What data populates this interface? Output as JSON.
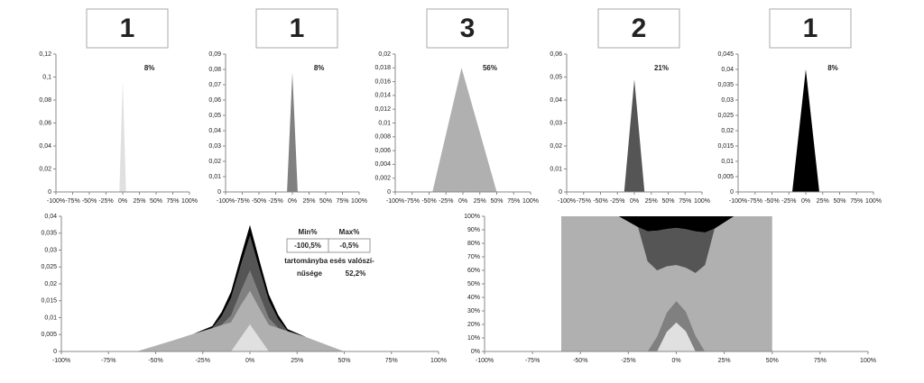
{
  "chart_data": [
    {
      "type": "area",
      "header": "1",
      "annotation": "8%",
      "x": [
        -5,
        0,
        5
      ],
      "values": [
        0,
        0.097,
        0
      ],
      "color": "#e0e0e0",
      "xlim": [
        -100,
        100
      ],
      "ylim": [
        0,
        0.12
      ],
      "xticks": [
        {
          "value": -100,
          "label": "-100%"
        },
        {
          "value": -75,
          "label": "-75%"
        },
        {
          "value": -50,
          "label": "-50%"
        },
        {
          "value": -25,
          "label": "-25%"
        },
        {
          "value": 0,
          "label": "0%"
        },
        {
          "value": 25,
          "label": "25%"
        },
        {
          "value": 50,
          "label": "50%"
        },
        {
          "value": 75,
          "label": "75%"
        },
        {
          "value": 100,
          "label": "100%"
        }
      ],
      "yticks": [
        0,
        {
          "value": 0.02,
          "label": "0,02"
        },
        {
          "value": 0.04,
          "label": "0,04"
        },
        {
          "value": 0.06,
          "label": "0,06"
        },
        {
          "value": 0.08,
          "label": "0,08"
        },
        {
          "value": 0.1,
          "label": "0,1"
        },
        {
          "value": 0.12,
          "label": "0,12"
        }
      ]
    },
    {
      "type": "area",
      "header": "1",
      "annotation": "8%",
      "x": [
        -8,
        0,
        8
      ],
      "values": [
        0,
        0.078,
        0
      ],
      "color": "#808080",
      "xlim": [
        -100,
        100
      ],
      "ylim": [
        0,
        0.09
      ],
      "xticks": [
        {
          "value": -100,
          "label": "-100%"
        },
        {
          "value": -75,
          "label": "-75%"
        },
        {
          "value": -50,
          "label": "-50%"
        },
        {
          "value": -25,
          "label": "-25%"
        },
        {
          "value": 0,
          "label": "0%"
        },
        {
          "value": 25,
          "label": "25%"
        },
        {
          "value": 50,
          "label": "50%"
        },
        {
          "value": 75,
          "label": "75%"
        },
        {
          "value": 100,
          "label": "100%"
        }
      ],
      "yticks": [
        0,
        {
          "value": 0.01,
          "label": "0,01"
        },
        {
          "value": 0.02,
          "label": "0,02"
        },
        {
          "value": 0.03,
          "label": "0,03"
        },
        {
          "value": 0.04,
          "label": "0,04"
        },
        {
          "value": 0.05,
          "label": "0,05"
        },
        {
          "value": 0.06,
          "label": "0,06"
        },
        {
          "value": 0.07,
          "label": "0,07"
        },
        {
          "value": 0.08,
          "label": "0,08"
        },
        {
          "value": 0.09,
          "label": "0,09"
        }
      ]
    },
    {
      "type": "area",
      "header": "3",
      "annotation": "56%",
      "x": [
        -45,
        -2,
        50
      ],
      "values": [
        0,
        0.018,
        0
      ],
      "color": "#b0b0b0",
      "xlim": [
        -100,
        100
      ],
      "ylim": [
        0,
        0.02
      ],
      "xticks": [
        {
          "value": -100,
          "label": "-100%"
        },
        {
          "value": -75,
          "label": "-75%"
        },
        {
          "value": -50,
          "label": "-50%"
        },
        {
          "value": -25,
          "label": "-25%"
        },
        {
          "value": 0,
          "label": "0%"
        },
        {
          "value": 25,
          "label": "25%"
        },
        {
          "value": 50,
          "label": "50%"
        },
        {
          "value": 75,
          "label": "75%"
        },
        {
          "value": 100,
          "label": "100%"
        }
      ],
      "yticks": [
        0,
        {
          "value": 0.002,
          "label": "0,002"
        },
        {
          "value": 0.004,
          "label": "0,004"
        },
        {
          "value": 0.006,
          "label": "0,006"
        },
        {
          "value": 0.008,
          "label": "0,008"
        },
        {
          "value": 0.01,
          "label": "0,01"
        },
        {
          "value": 0.012,
          "label": "0,012"
        },
        {
          "value": 0.014,
          "label": "0,014"
        },
        {
          "value": 0.016,
          "label": "0,016"
        },
        {
          "value": 0.018,
          "label": "0,018"
        },
        {
          "value": 0.02,
          "label": "0,02"
        }
      ]
    },
    {
      "type": "area",
      "header": "2",
      "annotation": "21%",
      "x": [
        -15,
        0,
        15
      ],
      "values": [
        0,
        0.049,
        0
      ],
      "color": "#555555",
      "xlim": [
        -100,
        100
      ],
      "ylim": [
        0,
        0.06
      ],
      "xticks": [
        {
          "value": -100,
          "label": "-100%"
        },
        {
          "value": -75,
          "label": "-75%"
        },
        {
          "value": -50,
          "label": "-50%"
        },
        {
          "value": -25,
          "label": "-25%"
        },
        {
          "value": 0,
          "label": "0%"
        },
        {
          "value": 25,
          "label": "25%"
        },
        {
          "value": 50,
          "label": "50%"
        },
        {
          "value": 75,
          "label": "75%"
        },
        {
          "value": 100,
          "label": "100%"
        }
      ],
      "yticks": [
        0,
        {
          "value": 0.01,
          "label": "0,01"
        },
        {
          "value": 0.02,
          "label": "0,02"
        },
        {
          "value": 0.03,
          "label": "0,03"
        },
        {
          "value": 0.04,
          "label": "0,04"
        },
        {
          "value": 0.05,
          "label": "0,05"
        },
        {
          "value": 0.06,
          "label": "0,06"
        }
      ]
    },
    {
      "type": "area",
      "header": "1",
      "annotation": "8%",
      "x": [
        -20,
        0,
        20
      ],
      "values": [
        0,
        0.04,
        0
      ],
      "color": "#000000",
      "xlim": [
        -100,
        100
      ],
      "ylim": [
        0,
        0.045
      ],
      "xticks": [
        {
          "value": -100,
          "label": "-100%"
        },
        {
          "value": -75,
          "label": "-75%"
        },
        {
          "value": -50,
          "label": "-50%"
        },
        {
          "value": -25,
          "label": "-25%"
        },
        {
          "value": 0,
          "label": "0%"
        },
        {
          "value": 25,
          "label": "25%"
        },
        {
          "value": 50,
          "label": "50%"
        },
        {
          "value": 75,
          "label": "75%"
        },
        {
          "value": 100,
          "label": "100%"
        }
      ],
      "yticks": [
        0,
        {
          "value": 0.005,
          "label": "0,005"
        },
        {
          "value": 0.01,
          "label": "0,01"
        },
        {
          "value": 0.015,
          "label": "0,015"
        },
        {
          "value": 0.02,
          "label": "0,02"
        },
        {
          "value": 0.025,
          "label": "0,025"
        },
        {
          "value": 0.03,
          "label": "0,03"
        },
        {
          "value": 0.035,
          "label": "0,035"
        },
        {
          "value": 0.04,
          "label": "0,04"
        },
        {
          "value": 0.045,
          "label": "0,045"
        }
      ]
    },
    {
      "type": "stacked-area",
      "x": [
        -60,
        -50,
        -40,
        -30,
        -20,
        -15,
        -10,
        -5,
        0,
        5,
        10,
        15,
        20,
        30,
        40,
        50
      ],
      "series": [
        {
          "color": "#e0e0e0",
          "values": [
            0,
            0,
            0,
            0,
            0,
            0,
            0,
            0.004,
            0.008,
            0.004,
            0,
            0,
            0,
            0,
            0,
            0
          ]
        },
        {
          "color": "#b0b0b0",
          "values": [
            0,
            0.0017,
            0.0034,
            0.0052,
            0.0069,
            0.0078,
            0.0086,
            0.0095,
            0.0099,
            0.0087,
            0.0078,
            0.0069,
            0.006,
            0.0042,
            0.0021,
            0
          ]
        },
        {
          "color": "#808080",
          "values": [
            0,
            0,
            0,
            0,
            0,
            0,
            0.002,
            0.004,
            0.006,
            0.004,
            0.002,
            0,
            0,
            0,
            0,
            0
          ]
        },
        {
          "color": "#555555",
          "values": [
            0,
            0,
            0,
            0,
            0,
            0.0026,
            0.0052,
            0.0077,
            0.0103,
            0.0077,
            0.0052,
            0.0026,
            0,
            0,
            0,
            0
          ]
        },
        {
          "color": "#000000",
          "values": [
            0,
            0,
            0,
            0,
            0.0006,
            0.0013,
            0.0019,
            0.0026,
            0.0032,
            0.0026,
            0.0019,
            0.0013,
            0.0006,
            0,
            0,
            0
          ]
        }
      ],
      "xlim": [
        -100,
        100
      ],
      "ylim": [
        0,
        0.04
      ],
      "xticks": [
        {
          "value": -100,
          "label": "-100%"
        },
        {
          "value": -75,
          "label": "-75%"
        },
        {
          "value": -50,
          "label": "-50%"
        },
        {
          "value": -25,
          "label": "-25%"
        },
        {
          "value": 0,
          "label": "0%"
        },
        {
          "value": 25,
          "label": "25%"
        },
        {
          "value": 50,
          "label": "50%"
        },
        {
          "value": 75,
          "label": "75%"
        },
        {
          "value": 100,
          "label": "100%"
        }
      ],
      "yticks": [
        0,
        {
          "value": 0.005,
          "label": "0,005"
        },
        {
          "value": 0.01,
          "label": "0,01"
        },
        {
          "value": 0.015,
          "label": "0,015"
        },
        {
          "value": 0.02,
          "label": "0,02"
        },
        {
          "value": 0.025,
          "label": "0,025"
        },
        {
          "value": 0.03,
          "label": "0,03"
        },
        {
          "value": 0.035,
          "label": "0,035"
        },
        {
          "value": 0.04,
          "label": "0,04"
        }
      ],
      "table": {
        "headers": [
          "Min%",
          "Max%"
        ],
        "values": [
          "-100,5%",
          "-0,5%"
        ],
        "text": [
          "tartományba esés valószí-",
          "nűsége"
        ],
        "result": "52,2%"
      }
    },
    {
      "type": "stacked-area",
      "x": [
        -60,
        -50,
        -40,
        -30,
        -20,
        -15,
        -10,
        -5,
        0,
        5,
        10,
        15,
        20,
        30,
        40,
        50
      ],
      "series": [
        {
          "color": "#e0e0e0",
          "values": [
            0,
            0,
            0,
            0,
            0,
            0,
            0,
            14.4,
            21.4,
            14.8,
            0,
            0,
            0,
            0,
            0,
            0
          ]
        },
        {
          "color": "#808080",
          "values": [
            0,
            0,
            0,
            0,
            0,
            0,
            11.3,
            14.4,
            16,
            14.8,
            11.8,
            0,
            0,
            0,
            0,
            0
          ]
        },
        {
          "color": "#b0b0b0",
          "values": [
            100,
            100,
            100,
            100,
            92,
            66.7,
            48.6,
            34.1,
            26.5,
            32.3,
            46.2,
            63.9,
            90.9,
            100,
            100,
            100
          ]
        },
        {
          "color": "#555555",
          "values": [
            0,
            0,
            0,
            0,
            0,
            22.2,
            29.4,
            27.7,
            27.5,
            28.5,
            30.8,
            24.1,
            0,
            0,
            0,
            0
          ]
        },
        {
          "color": "#000000",
          "values": [
            0,
            0,
            0,
            0,
            8,
            11.1,
            10.7,
            9.4,
            8.6,
            9.6,
            11.2,
            12,
            9.1,
            0,
            0,
            0
          ]
        }
      ],
      "xlim": [
        -100,
        100
      ],
      "ylim": [
        0,
        100
      ],
      "xticks": [
        {
          "value": -100,
          "label": "-100%"
        },
        {
          "value": -75,
          "label": "-75%"
        },
        {
          "value": -50,
          "label": "-50%"
        },
        {
          "value": -25,
          "label": "-25%"
        },
        {
          "value": 0,
          "label": "0%"
        },
        {
          "value": 25,
          "label": "25%"
        },
        {
          "value": 50,
          "label": "50%"
        },
        {
          "value": 75,
          "label": "75%"
        },
        {
          "value": 100,
          "label": "100%"
        }
      ],
      "yticks": [
        {
          "value": 0,
          "label": "0%"
        },
        {
          "value": 10,
          "label": "10%"
        },
        {
          "value": 20,
          "label": "20%"
        },
        {
          "value": 30,
          "label": "30%"
        },
        {
          "value": 40,
          "label": "40%"
        },
        {
          "value": 50,
          "label": "50%"
        },
        {
          "value": 60,
          "label": "60%"
        },
        {
          "value": 70,
          "label": "70%"
        },
        {
          "value": 80,
          "label": "80%"
        },
        {
          "value": 90,
          "label": "90%"
        },
        {
          "value": 100,
          "label": "100%"
        }
      ]
    }
  ]
}
